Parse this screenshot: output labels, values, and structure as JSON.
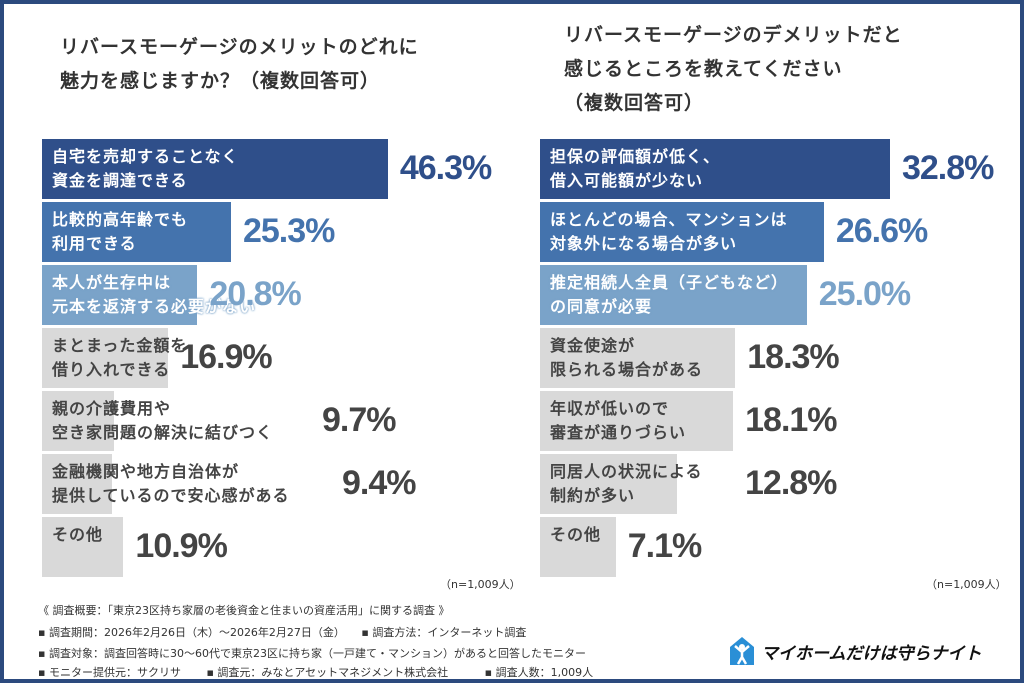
{
  "chart_data": [
    {
      "type": "bar",
      "orientation": "horizontal",
      "title": "リバースモーゲージのメリットのどれに\n魅力を感じますか？（複数回答可）",
      "categories": [
        "自宅を売却することなく\n資金を調達できる",
        "比較的高年齢でも\n利用できる",
        "本人が生存中は\n元本を返済する必要がない",
        "まとまった金額を\n借り入れできる",
        "親の介護費用や\n空き家問題の解決に結びつく",
        "金融機関や地方自治体が\n提供しているので安心感がある",
        "その他"
      ],
      "values": [
        46.3,
        25.3,
        20.8,
        16.9,
        9.7,
        9.4,
        10.9
      ],
      "value_labels": [
        "46.3%",
        "25.3%",
        "20.8%",
        "16.9%",
        "9.7%",
        "9.4%",
        "10.9%"
      ],
      "bar_colors": [
        "#2f4f8a",
        "#4473ad",
        "#7aa3c9",
        "#d9d9d9",
        "#d9d9d9",
        "#d9d9d9",
        "#d9d9d9"
      ],
      "note": "（n=1,009人）"
    },
    {
      "type": "bar",
      "orientation": "horizontal",
      "title": "リバースモーゲージのデメリットだと\n感じるところを教えてください\n（複数回答可）",
      "categories": [
        "担保の評価額が低く、\n借入可能額が少ない",
        "ほとんどの場合、マンションは\n対象外になる場合が多い",
        "推定相続人全員（子どもなど）\nの同意が必要",
        "資金使途が\n限られる場合がある",
        "年収が低いので\n審査が通りづらい",
        "同居人の状況による\n制約が多い",
        "その他"
      ],
      "values": [
        32.8,
        26.6,
        25.0,
        18.3,
        18.1,
        12.8,
        7.1
      ],
      "value_labels": [
        "32.8%",
        "26.6%",
        "25.0%",
        "18.3%",
        "18.1%",
        "12.8%",
        "7.1%"
      ],
      "bar_colors": [
        "#2f4f8a",
        "#4473ad",
        "#7aa3c9",
        "#d9d9d9",
        "#d9d9d9",
        "#d9d9d9",
        "#d9d9d9"
      ],
      "note": "（n=1,009人）"
    }
  ],
  "footer": {
    "lines": [
      "《 調査概要：「東京23区持ち家層の老後資金と住まいの資産活用」に関する調査 》",
      "▪ 調査期間：2026年2月26日（木）～2026年2月27日（金）　　▪ 調査方法：インターネット調査",
      "▪ 調査対象：調査回答時に30～60代で東京23区に持ち家（一戸建て・マンション）があると回答したモニター",
      "▪ モニター提供元：サクリサ　　 ▪ 調査元：みなとアセットマネジメント株式会社　　　 ▪ 調査人数：1,009人"
    ]
  },
  "logo": {
    "text": "マイホームだけは守らナイト"
  }
}
